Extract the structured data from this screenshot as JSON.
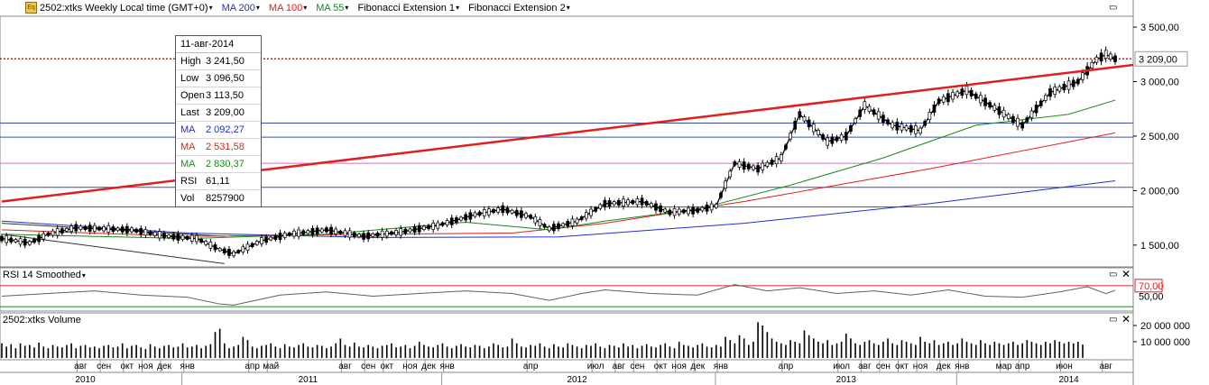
{
  "header": {
    "logo_text": "Eq",
    "symbol_title": "2502:xtks Weekly Local time (GMT+0)",
    "studies": [
      {
        "label": "MA 200",
        "color": "#1f2fd0"
      },
      {
        "label": "MA 100",
        "color": "#e02020"
      },
      {
        "label": "MA 55",
        "color": "#1a8a1a"
      },
      {
        "label": "Fibonacci Extension 1",
        "color": "#000000"
      },
      {
        "label": "Fibonacci Extension 2",
        "color": "#000000"
      }
    ]
  },
  "tooltip": {
    "date": "11-авг-2014",
    "rows": [
      {
        "label": "High",
        "value": "3 241,50",
        "color": "#000000"
      },
      {
        "label": "Low",
        "value": "3 096,50",
        "color": "#000000"
      },
      {
        "label": "Open",
        "value": "3 113,50",
        "color": "#000000"
      },
      {
        "label": "Last",
        "value": "3 209,00",
        "color": "#000000"
      },
      {
        "label": "MA",
        "value": "2 092,27",
        "color": "#1f2fd0"
      },
      {
        "label": "MA",
        "value": "2 531,58",
        "color": "#e02020"
      },
      {
        "label": "MA",
        "value": "2 830,37",
        "color": "#1a8a1a"
      },
      {
        "label": "RSI",
        "value": "61,11",
        "color": "#000000"
      },
      {
        "label": "Vol",
        "value": "8257900",
        "color": "#000000"
      }
    ]
  },
  "panes": {
    "rsi_title": "RSI 14 Smoothed",
    "volume_title": "2502:xtks Volume",
    "close_glyph": "✕"
  },
  "chart_data": [
    {
      "type": "candlestick",
      "title": "2502:xtks Weekly",
      "ylim": [
        1300,
        3600
      ],
      "y_ticks": [
        "3 500,00",
        "3 000,00",
        "2 500,00",
        "2 000,00",
        "1 500,00"
      ],
      "y_tick_values": [
        3500,
        3000,
        2500,
        2000,
        1500
      ],
      "last_price_label": "3 209,00",
      "last_price": 3209,
      "horizontal_levels": [
        {
          "value": 3209,
          "color": "#cc2200",
          "style": "dotted"
        },
        {
          "value": 2620,
          "color": "#3a4fa8"
        },
        {
          "value": 2490,
          "color": "#3a4fa8"
        },
        {
          "value": 2250,
          "color": "#e060e0"
        },
        {
          "value": 2030,
          "color": "#3a4fa8"
        },
        {
          "value": 1850,
          "color": "#1a8a1a"
        }
      ],
      "trendline": {
        "from": {
          "week": 0,
          "value": 1900
        },
        "to": {
          "week": 240,
          "value": 3170
        },
        "color": "#e02020"
      },
      "fib_lines": [
        {
          "from": {
            "week": 0,
            "value": 1600
          },
          "to": {
            "week": 48,
            "value": 1330
          }
        },
        {
          "from": {
            "week": 0,
            "value": 1700
          },
          "to": {
            "week": 48,
            "value": 1580
          }
        }
      ],
      "series": [
        {
          "name": "MA 200",
          "color": "#1f2fd0",
          "points": [
            [
              0,
              1720
            ],
            [
              40,
              1610
            ],
            [
              80,
              1570
            ],
            [
              120,
              1575
            ],
            [
              160,
              1700
            ],
            [
              200,
              1880
            ],
            [
              240,
              2090
            ]
          ]
        },
        {
          "name": "MA 100",
          "color": "#e02020",
          "points": [
            [
              0,
              1640
            ],
            [
              40,
              1580
            ],
            [
              80,
              1600
            ],
            [
              110,
              1610
            ],
            [
              130,
              1700
            ],
            [
              160,
              1900
            ],
            [
              200,
              2200
            ],
            [
              240,
              2530
            ]
          ]
        },
        {
          "name": "MA 55",
          "color": "#1a8a1a",
          "points": [
            [
              0,
              1600
            ],
            [
              40,
              1560
            ],
            [
              70,
              1600
            ],
            [
              100,
              1710
            ],
            [
              118,
              1640
            ],
            [
              130,
              1720
            ],
            [
              150,
              1830
            ],
            [
              170,
              2050
            ],
            [
              190,
              2300
            ],
            [
              210,
              2600
            ],
            [
              230,
              2700
            ],
            [
              240,
              2830
            ]
          ]
        },
        {
          "name": "Price",
          "color": "#000000",
          "points": [
            [
              0,
              1560
            ],
            [
              6,
              1520
            ],
            [
              10,
              1600
            ],
            [
              16,
              1660
            ],
            [
              22,
              1650
            ],
            [
              28,
              1640
            ],
            [
              36,
              1580
            ],
            [
              42,
              1560
            ],
            [
              47,
              1460
            ],
            [
              50,
              1420
            ],
            [
              56,
              1540
            ],
            [
              62,
              1600
            ],
            [
              70,
              1640
            ],
            [
              78,
              1580
            ],
            [
              86,
              1620
            ],
            [
              94,
              1680
            ],
            [
              102,
              1780
            ],
            [
              108,
              1830
            ],
            [
              114,
              1760
            ],
            [
              118,
              1650
            ],
            [
              124,
              1720
            ],
            [
              130,
              1880
            ],
            [
              138,
              1900
            ],
            [
              144,
              1800
            ],
            [
              150,
              1820
            ],
            [
              154,
              1860
            ],
            [
              158,
              2250
            ],
            [
              163,
              2200
            ],
            [
              168,
              2300
            ],
            [
              172,
              2700
            ],
            [
              178,
              2450
            ],
            [
              182,
              2500
            ],
            [
              186,
              2780
            ],
            [
              192,
              2600
            ],
            [
              198,
              2550
            ],
            [
              202,
              2820
            ],
            [
              208,
              2920
            ],
            [
              214,
              2760
            ],
            [
              220,
              2600
            ],
            [
              226,
              2900
            ],
            [
              232,
              3000
            ],
            [
              236,
              3200
            ],
            [
              238,
              3250
            ],
            [
              240,
              3209
            ]
          ]
        }
      ],
      "label_date": "11-авг-2014",
      "x_month_labels": [
        "авг",
        "сен",
        "окт",
        "ноя",
        "дек",
        "янв",
        "апр",
        "май",
        "авг",
        "сен",
        "окт",
        "ноя",
        "дек",
        "янв",
        "апр",
        "июл",
        "авг",
        "сен",
        "окт",
        "ноя",
        "дек",
        "янв",
        "апр",
        "июл",
        "авг",
        "сен",
        "окт",
        "ноя",
        "дек",
        "янв",
        "мар",
        "апр",
        "июн",
        "авг"
      ],
      "x_month_weeks": [
        17,
        22,
        27,
        31,
        35,
        40,
        54,
        58,
        74,
        79,
        83,
        88,
        92,
        96,
        114,
        128,
        133,
        137,
        142,
        146,
        150,
        155,
        169,
        181,
        186,
        190,
        194,
        198,
        203,
        207,
        216,
        220,
        229,
        238
      ],
      "x_year_labels": [
        "2010",
        "2011",
        "2012",
        "2013",
        "2014"
      ],
      "x_year_weeks": [
        18,
        66,
        124,
        182,
        230
      ]
    },
    {
      "type": "line",
      "title": "RSI 14 Smoothed",
      "ylim": [
        25,
        80
      ],
      "y_ticks": [
        "70,00",
        "50,00"
      ],
      "y_tick_values": [
        70,
        50
      ],
      "levels": [
        {
          "value": 70,
          "color": "#e02020"
        },
        {
          "value": 30,
          "color": "#1a8a1a"
        }
      ],
      "series": [
        {
          "name": "RSI",
          "color": "#606060",
          "points": [
            [
              0,
              50
            ],
            [
              10,
              55
            ],
            [
              20,
              60
            ],
            [
              30,
              52
            ],
            [
              40,
              48
            ],
            [
              47,
              35
            ],
            [
              50,
              33
            ],
            [
              60,
              52
            ],
            [
              70,
              58
            ],
            [
              80,
              50
            ],
            [
              90,
              55
            ],
            [
              100,
              60
            ],
            [
              110,
              55
            ],
            [
              118,
              42
            ],
            [
              125,
              55
            ],
            [
              130,
              62
            ],
            [
              140,
              55
            ],
            [
              150,
              52
            ],
            [
              158,
              72
            ],
            [
              165,
              60
            ],
            [
              172,
              66
            ],
            [
              180,
              55
            ],
            [
              188,
              60
            ],
            [
              196,
              52
            ],
            [
              204,
              62
            ],
            [
              212,
              50
            ],
            [
              220,
              48
            ],
            [
              228,
              58
            ],
            [
              234,
              68
            ],
            [
              238,
              55
            ],
            [
              240,
              61
            ]
          ]
        }
      ]
    },
    {
      "type": "bar",
      "title": "2502:xtks Volume",
      "ylim": [
        0,
        25000000
      ],
      "y_ticks": [
        "20 000 000",
        "10 000 000"
      ],
      "y_tick_values": [
        20000000,
        10000000
      ],
      "color": "#000000",
      "values": [
        9000000,
        7000000,
        8500000,
        6000000,
        9000000,
        7500000,
        8000000,
        6500000,
        9500000,
        7000000,
        6000000,
        8000000,
        7000000,
        6500000,
        8000000,
        9000000,
        6000000,
        7500000,
        8000000,
        6500000,
        7000000,
        6000000,
        7500000,
        8000000,
        6500000,
        7000000,
        9000000,
        6000000,
        7500000,
        8000000,
        6500000,
        5500000,
        8500000,
        7000000,
        6000000,
        7500000,
        8000000,
        6500000,
        7000000,
        9000000,
        6500000,
        7000000,
        8000000,
        6000000,
        7500000,
        8500000,
        16000000,
        18000000,
        9000000,
        6000000,
        7000000,
        8000000,
        13000000,
        11000000,
        7000000,
        6000000,
        7500000,
        8000000,
        9000000,
        7000000,
        6000000,
        8500000,
        7000000,
        6500000,
        8000000,
        9000000,
        7000000,
        6500000,
        8000000,
        7500000,
        6000000,
        7000000,
        9000000,
        12000000,
        8000000,
        7000000,
        9500000,
        7000000,
        6500000,
        8000000,
        7000000,
        6000000,
        7500000,
        8000000,
        9000000,
        6500000,
        7000000,
        8000000,
        6000000,
        7500000,
        10000000,
        8000000,
        7000000,
        6500000,
        8000000,
        9000000,
        7000000,
        6000000,
        7500000,
        8500000,
        7000000,
        6500000,
        8000000,
        7500000,
        6000000,
        7000000,
        9000000,
        8000000,
        6500000,
        7000000,
        12000000,
        9000000,
        7000000,
        6500000,
        8000000,
        7500000,
        9000000,
        7000000,
        6000000,
        8500000,
        7000000,
        6500000,
        9000000,
        8000000,
        7000000,
        6000000,
        8000000,
        7500000,
        9000000,
        7000000,
        6000000,
        8000000,
        7500000,
        6500000,
        9000000,
        7000000,
        8000000,
        6000000,
        7500000,
        8500000,
        7000000,
        6500000,
        8000000,
        9000000,
        7000000,
        6000000,
        10000000,
        8000000,
        7500000,
        6500000,
        8000000,
        9000000,
        7000000,
        6500000,
        8000000,
        7000000,
        13000000,
        11000000,
        9000000,
        14000000,
        12000000,
        8000000,
        10000000,
        22000000,
        20000000,
        16000000,
        12000000,
        10000000,
        9000000,
        8000000,
        11000000,
        10000000,
        9000000,
        17000000,
        14000000,
        12000000,
        10000000,
        9000000,
        11000000,
        8000000,
        9000000,
        10000000,
        15000000,
        12000000,
        9000000,
        8000000,
        10000000,
        11000000,
        9000000,
        8000000,
        10000000,
        12000000,
        9000000,
        8000000,
        11000000,
        10000000,
        9000000,
        8000000,
        13000000,
        10000000,
        9000000,
        11000000,
        8000000,
        9000000,
        10000000,
        8000000,
        9000000,
        12000000,
        10000000,
        9000000,
        8000000,
        11000000,
        9000000,
        8000000,
        10000000,
        9000000,
        8000000,
        9000000,
        10000000,
        8000000,
        9000000,
        11000000,
        10000000,
        9000000,
        8000000,
        10000000,
        9000000,
        11000000,
        10000000,
        9000000,
        10000000,
        9000000,
        10000000,
        8257900
      ]
    }
  ]
}
